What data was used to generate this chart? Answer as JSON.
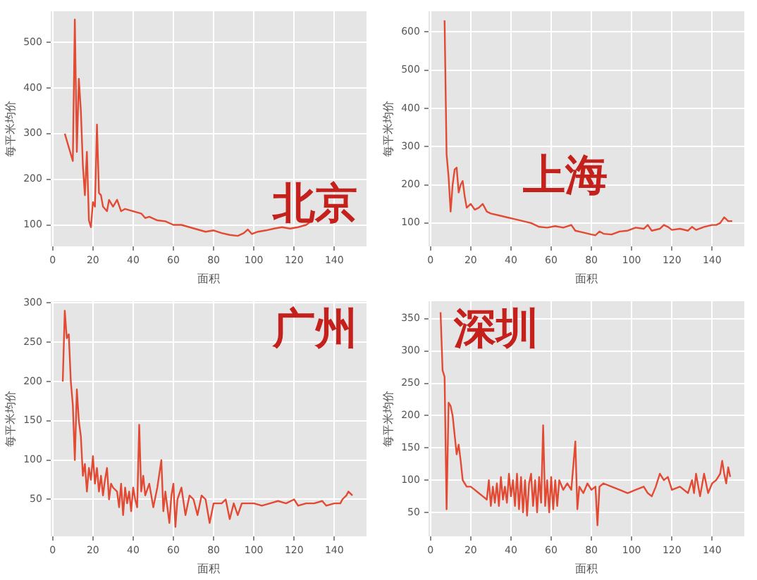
{
  "chart_data": [
    {
      "type": "line",
      "xlabel": "面积",
      "ylabel": "每平米均价",
      "annotations": [
        "北京"
      ],
      "grid": true,
      "xlim": [
        -1,
        156
      ],
      "xticks": [
        0,
        20,
        40,
        60,
        80,
        100,
        120,
        140
      ],
      "ylim": [
        53,
        568
      ],
      "yticks": [
        100,
        200,
        300,
        400,
        500
      ],
      "series": [
        {
          "color": "#e24a33",
          "x": [
            6,
            10,
            11,
            12,
            13,
            14,
            15,
            16,
            17,
            18,
            19,
            20,
            21,
            22,
            23,
            24,
            25,
            27,
            28,
            30,
            32,
            34,
            36,
            40,
            44,
            46,
            48,
            52,
            56,
            60,
            64,
            68,
            72,
            76,
            80,
            84,
            88,
            92,
            95,
            97,
            99,
            102,
            106,
            110,
            114,
            118,
            122,
            126,
            129
          ],
          "values": [
            300,
            240,
            550,
            260,
            420,
            350,
            230,
            165,
            260,
            110,
            95,
            150,
            140,
            320,
            170,
            165,
            140,
            130,
            155,
            140,
            155,
            130,
            135,
            130,
            125,
            115,
            118,
            110,
            108,
            100,
            100,
            95,
            90,
            85,
            88,
            82,
            78,
            76,
            82,
            90,
            80,
            85,
            88,
            92,
            95,
            92,
            95,
            100,
            110
          ]
        }
      ]
    },
    {
      "type": "line",
      "xlabel": "面积",
      "ylabel": "每平米均价",
      "annotations": [
        "上海"
      ],
      "grid": true,
      "xlim": [
        -1,
        156
      ],
      "xticks": [
        0,
        20,
        40,
        60,
        80,
        100,
        120,
        140
      ],
      "ylim": [
        39,
        654
      ],
      "yticks": [
        100,
        200,
        300,
        400,
        500,
        600
      ],
      "series": [
        {
          "color": "#e24a33",
          "x": [
            7,
            8,
            9,
            10,
            11,
            12,
            13,
            14,
            15,
            16,
            17,
            18,
            20,
            22,
            24,
            26,
            28,
            30,
            34,
            38,
            42,
            46,
            50,
            54,
            58,
            62,
            66,
            70,
            72,
            76,
            80,
            82,
            84,
            86,
            90,
            94,
            98,
            102,
            106,
            108,
            110,
            114,
            116,
            118,
            120,
            124,
            128,
            130,
            132,
            136,
            140,
            142,
            144,
            146,
            148,
            150
          ],
          "values": [
            630,
            280,
            220,
            130,
            200,
            240,
            245,
            180,
            200,
            210,
            170,
            140,
            150,
            135,
            140,
            150,
            130,
            125,
            120,
            115,
            110,
            105,
            100,
            90,
            88,
            92,
            88,
            95,
            80,
            75,
            70,
            68,
            78,
            72,
            70,
            78,
            80,
            88,
            85,
            95,
            80,
            85,
            95,
            90,
            82,
            85,
            80,
            90,
            82,
            90,
            95,
            95,
            100,
            115,
            105,
            105
          ]
        }
      ]
    },
    {
      "type": "line",
      "xlabel": "面积",
      "ylabel": "每平米均价",
      "annotations": [
        "广州"
      ],
      "grid": true,
      "xlim": [
        -1,
        156
      ],
      "xticks": [
        0,
        20,
        40,
        60,
        80,
        100,
        120,
        140
      ],
      "ylim": [
        3,
        302
      ],
      "yticks": [
        50,
        100,
        150,
        200,
        250,
        300
      ],
      "series": [
        {
          "color": "#e24a33",
          "x": [
            5,
            6,
            7,
            8,
            9,
            10,
            11,
            12,
            13,
            14,
            15,
            16,
            17,
            18,
            19,
            20,
            21,
            22,
            23,
            24,
            25,
            26,
            27,
            28,
            29,
            30,
            32,
            33,
            34,
            35,
            36,
            37,
            38,
            39,
            40,
            41,
            42,
            43,
            44,
            45,
            46,
            48,
            50,
            52,
            54,
            55,
            56,
            58,
            59,
            60,
            61,
            62,
            64,
            66,
            68,
            70,
            72,
            74,
            76,
            78,
            80,
            84,
            86,
            88,
            90,
            92,
            94,
            100,
            104,
            108,
            112,
            116,
            120,
            122,
            126,
            130,
            134,
            136,
            140,
            143,
            144,
            146,
            147,
            149
          ],
          "values": [
            200,
            290,
            255,
            260,
            200,
            170,
            100,
            190,
            150,
            130,
            80,
            95,
            60,
            90,
            75,
            105,
            70,
            90,
            60,
            80,
            55,
            75,
            90,
            50,
            70,
            65,
            60,
            40,
            70,
            30,
            65,
            45,
            60,
            35,
            65,
            50,
            40,
            145,
            60,
            80,
            55,
            70,
            40,
            65,
            100,
            35,
            60,
            20,
            55,
            70,
            15,
            50,
            65,
            30,
            55,
            50,
            30,
            55,
            50,
            20,
            45,
            45,
            50,
            25,
            45,
            30,
            45,
            45,
            42,
            45,
            48,
            45,
            50,
            42,
            45,
            45,
            48,
            42,
            45,
            45,
            50,
            55,
            60,
            55
          ]
        }
      ]
    },
    {
      "type": "line",
      "xlabel": "面积",
      "ylabel": "每平米均价",
      "annotations": [
        "深圳"
      ],
      "grid": true,
      "xlim": [
        -1,
        156
      ],
      "xticks": [
        0,
        20,
        40,
        60,
        80,
        100,
        120,
        140
      ],
      "ylim": [
        13,
        377
      ],
      "yticks": [
        50,
        100,
        150,
        200,
        250,
        300,
        350
      ],
      "series": [
        {
          "color": "#e24a33",
          "x": [
            5,
            6,
            7,
            8,
            9,
            10,
            11,
            12,
            13,
            14,
            15,
            16,
            17,
            18,
            20,
            22,
            24,
            26,
            28,
            29,
            30,
            31,
            32,
            33,
            34,
            35,
            36,
            37,
            38,
            39,
            40,
            41,
            42,
            43,
            44,
            45,
            46,
            47,
            48,
            49,
            50,
            51,
            52,
            53,
            54,
            55,
            56,
            57,
            58,
            59,
            60,
            61,
            62,
            63,
            64,
            66,
            68,
            70,
            72,
            73,
            74,
            76,
            78,
            80,
            82,
            83,
            84,
            86,
            90,
            94,
            98,
            102,
            106,
            108,
            110,
            112,
            114,
            116,
            118,
            120,
            124,
            128,
            130,
            131,
            132,
            134,
            136,
            138,
            140,
            142,
            144,
            145,
            146,
            147,
            148,
            149
          ],
          "values": [
            360,
            270,
            260,
            55,
            220,
            215,
            200,
            170,
            140,
            155,
            130,
            100,
            95,
            90,
            90,
            85,
            80,
            75,
            70,
            100,
            60,
            90,
            65,
            95,
            60,
            105,
            70,
            90,
            65,
            110,
            75,
            100,
            60,
            110,
            55,
            105,
            50,
            100,
            45,
            95,
            110,
            60,
            100,
            50,
            105,
            65,
            185,
            60,
            100,
            50,
            105,
            55,
            100,
            60,
            100,
            85,
            95,
            85,
            160,
            55,
            90,
            80,
            95,
            85,
            90,
            30,
            90,
            95,
            90,
            85,
            80,
            85,
            90,
            80,
            75,
            90,
            110,
            100,
            105,
            85,
            90,
            80,
            100,
            80,
            110,
            75,
            110,
            80,
            95,
            100,
            110,
            130,
            110,
            95,
            120,
            105
          ]
        }
      ]
    }
  ]
}
